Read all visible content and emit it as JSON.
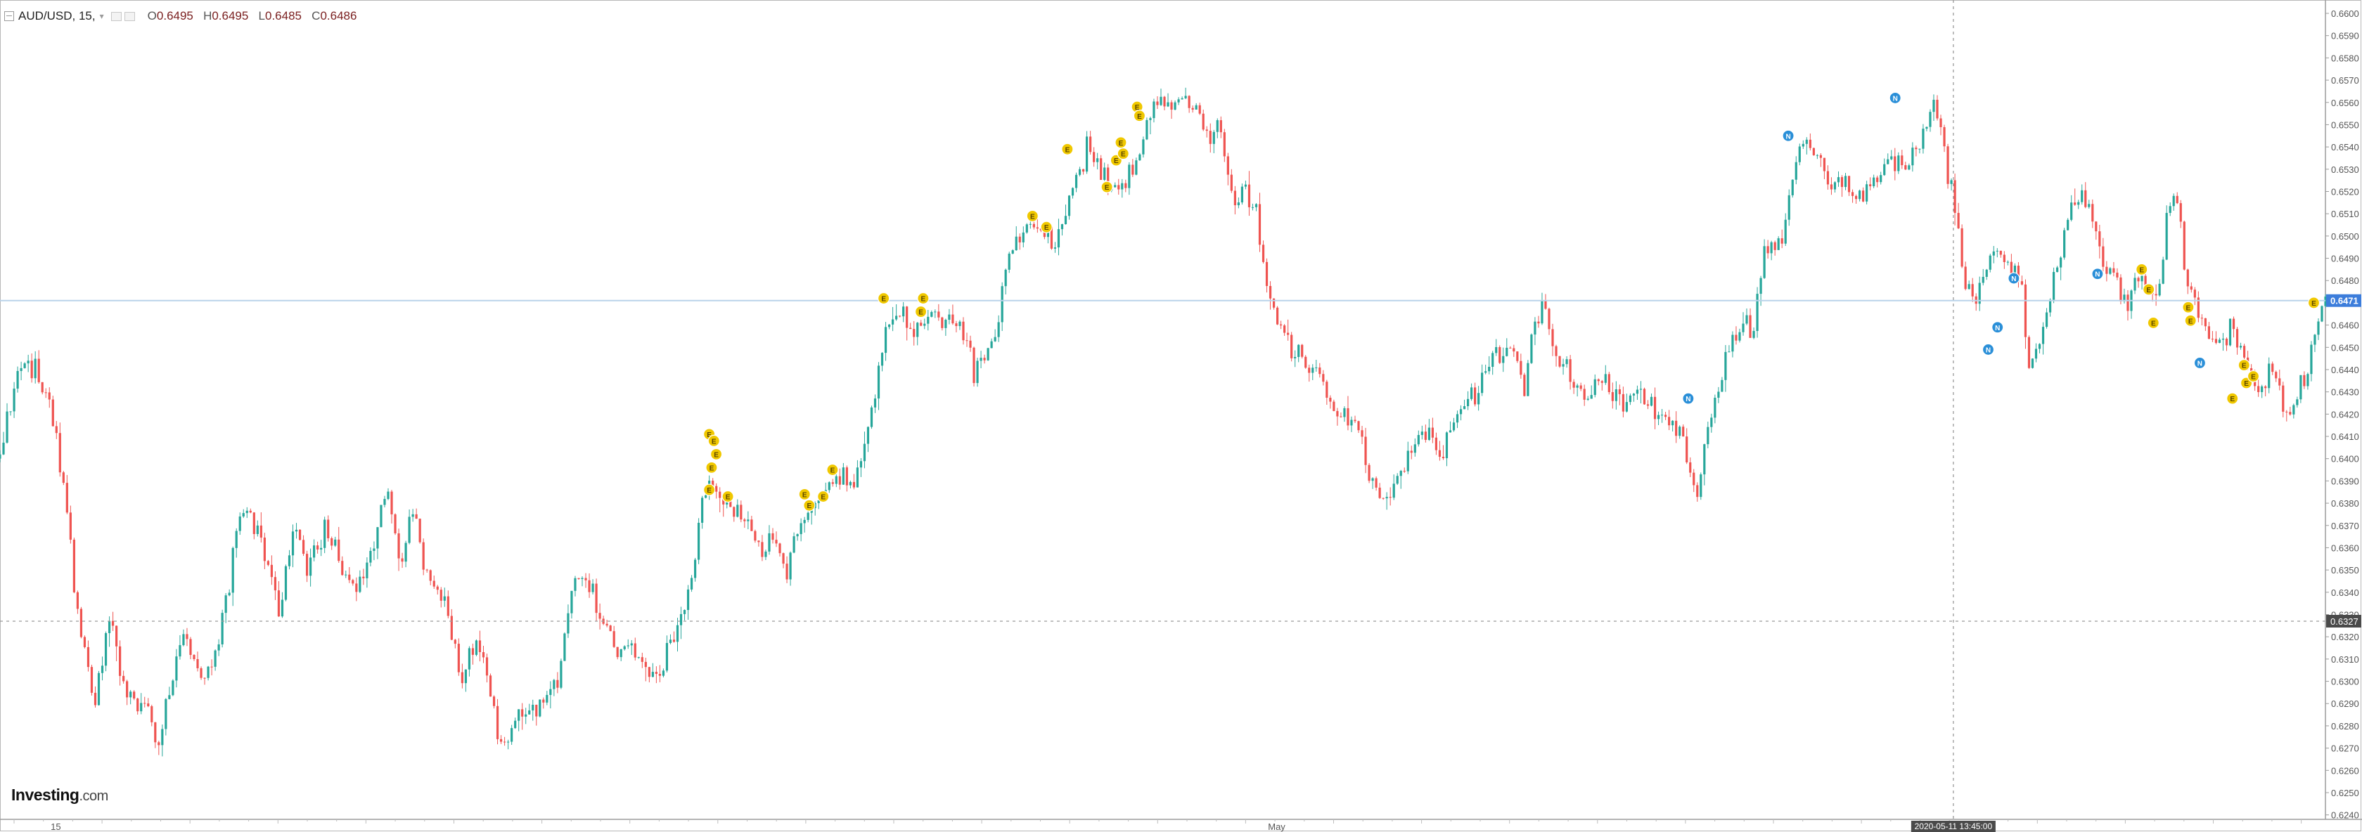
{
  "header": {
    "symbol": "AUD/USD",
    "interval": "15",
    "open_label": "O",
    "open": "0.6495",
    "high_label": "H",
    "high": "0.6495",
    "low_label": "L",
    "low": "0.6485",
    "close_label": "C",
    "close": "0.6486"
  },
  "brand": {
    "name": "Investing",
    "domain": ".com"
  },
  "colors": {
    "up": "#26a69a",
    "down": "#ef5350",
    "last_price_badge": "#3c7ddb",
    "crosshair_badge": "#4a4a4a",
    "event_marker_e": "#f0c800",
    "event_marker_n": "#2a8fd8",
    "price_line": "#b9d3ea"
  },
  "chart_data": {
    "type": "candlestick",
    "title": "AUD/USD, 15",
    "ylim": [
      0.6238,
      0.6606
    ],
    "yticks": [
      "0.6600",
      "0.6590",
      "0.6580",
      "0.6570",
      "0.6560",
      "0.6550",
      "0.6540",
      "0.6530",
      "0.6520",
      "0.6510",
      "0.6500",
      "0.6490",
      "0.6480",
      "0.6470",
      "0.6460",
      "0.6450",
      "0.6440",
      "0.6430",
      "0.6420",
      "0.6410",
      "0.6400",
      "0.6390",
      "0.6380",
      "0.6370",
      "0.6360",
      "0.6350",
      "0.6340",
      "0.6330",
      "0.6320",
      "0.6310",
      "0.6300",
      "0.6290",
      "0.6280",
      "0.6270",
      "0.6260",
      "0.6250",
      "0.6240"
    ],
    "x_labels": [
      {
        "label": "15",
        "pos": 0.024
      },
      {
        "label": "May",
        "pos": 0.549
      },
      {
        "label": "2020-05-11 13:45:00",
        "pos": 0.84,
        "highlight": true
      }
    ],
    "close_path": [
      [
        0.0,
        0.64
      ],
      [
        0.008,
        0.644
      ],
      [
        0.015,
        0.644
      ],
      [
        0.022,
        0.642
      ],
      [
        0.028,
        0.639
      ],
      [
        0.032,
        0.634
      ],
      [
        0.036,
        0.632
      ],
      [
        0.041,
        0.629
      ],
      [
        0.047,
        0.633
      ],
      [
        0.053,
        0.63
      ],
      [
        0.058,
        0.629
      ],
      [
        0.063,
        0.629
      ],
      [
        0.068,
        0.627
      ],
      [
        0.074,
        0.63
      ],
      [
        0.08,
        0.632
      ],
      [
        0.086,
        0.63
      ],
      [
        0.092,
        0.631
      ],
      [
        0.098,
        0.634
      ],
      [
        0.104,
        0.638
      ],
      [
        0.11,
        0.637
      ],
      [
        0.116,
        0.635
      ],
      [
        0.12,
        0.633
      ],
      [
        0.126,
        0.637
      ],
      [
        0.132,
        0.635
      ],
      [
        0.14,
        0.637
      ],
      [
        0.146,
        0.635
      ],
      [
        0.153,
        0.634
      ],
      [
        0.16,
        0.636
      ],
      [
        0.166,
        0.639
      ],
      [
        0.172,
        0.635
      ],
      [
        0.178,
        0.638
      ],
      [
        0.183,
        0.635
      ],
      [
        0.188,
        0.634
      ],
      [
        0.193,
        0.633
      ],
      [
        0.198,
        0.63
      ],
      [
        0.203,
        0.632
      ],
      [
        0.208,
        0.631
      ],
      [
        0.213,
        0.628
      ],
      [
        0.218,
        0.627
      ],
      [
        0.222,
        0.628
      ],
      [
        0.228,
        0.629
      ],
      [
        0.234,
        0.629
      ],
      [
        0.24,
        0.63
      ],
      [
        0.244,
        0.633
      ],
      [
        0.248,
        0.635
      ],
      [
        0.254,
        0.634
      ],
      [
        0.258,
        0.633
      ],
      [
        0.262,
        0.632
      ],
      [
        0.266,
        0.631
      ],
      [
        0.271,
        0.632
      ],
      [
        0.276,
        0.631
      ],
      [
        0.281,
        0.63
      ],
      [
        0.286,
        0.631
      ],
      [
        0.29,
        0.632
      ],
      [
        0.294,
        0.633
      ],
      [
        0.298,
        0.635
      ],
      [
        0.303,
        0.639
      ],
      [
        0.308,
        0.6385
      ],
      [
        0.313,
        0.638
      ],
      [
        0.318,
        0.6375
      ],
      [
        0.323,
        0.637
      ],
      [
        0.328,
        0.636
      ],
      [
        0.333,
        0.636
      ],
      [
        0.338,
        0.635
      ],
      [
        0.344,
        0.637
      ],
      [
        0.349,
        0.638
      ],
      [
        0.354,
        0.6385
      ],
      [
        0.36,
        0.639
      ],
      [
        0.366,
        0.639
      ],
      [
        0.371,
        0.64
      ],
      [
        0.376,
        0.643
      ],
      [
        0.381,
        0.646
      ],
      [
        0.386,
        0.647
      ],
      [
        0.392,
        0.646
      ],
      [
        0.398,
        0.6465
      ],
      [
        0.404,
        0.646
      ],
      [
        0.409,
        0.6465
      ],
      [
        0.414,
        0.646
      ],
      [
        0.419,
        0.644
      ],
      [
        0.424,
        0.645
      ],
      [
        0.429,
        0.646
      ],
      [
        0.433,
        0.649
      ],
      [
        0.438,
        0.65
      ],
      [
        0.443,
        0.6505
      ],
      [
        0.448,
        0.65
      ],
      [
        0.453,
        0.6495
      ],
      [
        0.458,
        0.651
      ],
      [
        0.463,
        0.653
      ],
      [
        0.468,
        0.654
      ],
      [
        0.473,
        0.653
      ],
      [
        0.478,
        0.652
      ],
      [
        0.483,
        0.6525
      ],
      [
        0.488,
        0.653
      ],
      [
        0.493,
        0.655
      ],
      [
        0.498,
        0.656
      ],
      [
        0.503,
        0.6555
      ],
      [
        0.508,
        0.6565
      ],
      [
        0.512,
        0.656
      ],
      [
        0.516,
        0.655
      ],
      [
        0.52,
        0.6545
      ],
      [
        0.525,
        0.655
      ],
      [
        0.528,
        0.653
      ],
      [
        0.531,
        0.651
      ],
      [
        0.535,
        0.652
      ],
      [
        0.54,
        0.651
      ],
      [
        0.545,
        0.648
      ],
      [
        0.55,
        0.646
      ],
      [
        0.555,
        0.645
      ],
      [
        0.56,
        0.645
      ],
      [
        0.565,
        0.644
      ],
      [
        0.57,
        0.643
      ],
      [
        0.575,
        0.642
      ],
      [
        0.58,
        0.642
      ],
      [
        0.585,
        0.641
      ],
      [
        0.59,
        0.639
      ],
      [
        0.595,
        0.638
      ],
      [
        0.6,
        0.639
      ],
      [
        0.605,
        0.64
      ],
      [
        0.61,
        0.641
      ],
      [
        0.615,
        0.641
      ],
      [
        0.62,
        0.64
      ],
      [
        0.625,
        0.642
      ],
      [
        0.63,
        0.6425
      ],
      [
        0.635,
        0.643
      ],
      [
        0.64,
        0.644
      ],
      [
        0.645,
        0.6445
      ],
      [
        0.65,
        0.645
      ],
      [
        0.655,
        0.643
      ],
      [
        0.66,
        0.646
      ],
      [
        0.664,
        0.647
      ],
      [
        0.668,
        0.645
      ],
      [
        0.673,
        0.644
      ],
      [
        0.678,
        0.6435
      ],
      [
        0.683,
        0.6425
      ],
      [
        0.688,
        0.644
      ],
      [
        0.693,
        0.643
      ],
      [
        0.698,
        0.6425
      ],
      [
        0.703,
        0.643
      ],
      [
        0.708,
        0.6425
      ],
      [
        0.713,
        0.642
      ],
      [
        0.718,
        0.642
      ],
      [
        0.723,
        0.641
      ],
      [
        0.727,
        0.639
      ],
      [
        0.73,
        0.638
      ],
      [
        0.733,
        0.641
      ],
      [
        0.737,
        0.642
      ],
      [
        0.741,
        0.644
      ],
      [
        0.745,
        0.6455
      ],
      [
        0.75,
        0.646
      ],
      [
        0.754,
        0.646
      ],
      [
        0.758,
        0.649
      ],
      [
        0.762,
        0.6495
      ],
      [
        0.766,
        0.65
      ],
      [
        0.77,
        0.652
      ],
      [
        0.774,
        0.654
      ],
      [
        0.778,
        0.654
      ],
      [
        0.783,
        0.6535
      ],
      [
        0.788,
        0.652
      ],
      [
        0.793,
        0.6525
      ],
      [
        0.798,
        0.6515
      ],
      [
        0.803,
        0.652
      ],
      [
        0.808,
        0.653
      ],
      [
        0.813,
        0.6535
      ],
      [
        0.818,
        0.653
      ],
      [
        0.823,
        0.654
      ],
      [
        0.828,
        0.655
      ],
      [
        0.832,
        0.656
      ],
      [
        0.836,
        0.654
      ],
      [
        0.84,
        0.6515
      ],
      [
        0.844,
        0.649
      ],
      [
        0.848,
        0.647
      ],
      [
        0.852,
        0.648
      ],
      [
        0.857,
        0.649
      ],
      [
        0.862,
        0.649
      ],
      [
        0.866,
        0.648
      ],
      [
        0.87,
        0.647
      ],
      [
        0.873,
        0.644
      ],
      [
        0.876,
        0.645
      ],
      [
        0.88,
        0.6465
      ],
      [
        0.884,
        0.648
      ],
      [
        0.888,
        0.65
      ],
      [
        0.892,
        0.6515
      ],
      [
        0.896,
        0.652
      ],
      [
        0.9,
        0.651
      ],
      [
        0.904,
        0.649
      ],
      [
        0.908,
        0.648
      ],
      [
        0.912,
        0.6475
      ],
      [
        0.916,
        0.647
      ],
      [
        0.92,
        0.648
      ],
      [
        0.924,
        0.6475
      ],
      [
        0.928,
        0.647
      ],
      [
        0.932,
        0.651
      ],
      [
        0.936,
        0.652
      ],
      [
        0.94,
        0.648
      ],
      [
        0.944,
        0.647
      ],
      [
        0.948,
        0.646
      ],
      [
        0.952,
        0.645
      ],
      [
        0.956,
        0.6455
      ],
      [
        0.96,
        0.646
      ],
      [
        0.964,
        0.645
      ],
      [
        0.968,
        0.644
      ],
      [
        0.972,
        0.643
      ],
      [
        0.976,
        0.644
      ],
      [
        0.98,
        0.643
      ],
      [
        0.984,
        0.642
      ],
      [
        0.988,
        0.643
      ],
      [
        0.992,
        0.644
      ],
      [
        0.996,
        0.646
      ],
      [
        1.0,
        0.6471
      ]
    ],
    "volatility": 0.0009,
    "last_price": "0.6471",
    "crosshair_price": "0.6327",
    "crosshair_x_pos": 0.84,
    "event_markers": [
      {
        "label": "E",
        "x": 0.305,
        "y": 0.6411
      },
      {
        "label": "E",
        "x": 0.307,
        "y": 0.6408
      },
      {
        "label": "E",
        "x": 0.308,
        "y": 0.6402
      },
      {
        "label": "E",
        "x": 0.306,
        "y": 0.6396
      },
      {
        "label": "E",
        "x": 0.305,
        "y": 0.6386
      },
      {
        "label": "E",
        "x": 0.313,
        "y": 0.6383
      },
      {
        "label": "E",
        "x": 0.346,
        "y": 0.6384
      },
      {
        "label": "E",
        "x": 0.348,
        "y": 0.6379
      },
      {
        "label": "E",
        "x": 0.354,
        "y": 0.6383
      },
      {
        "label": "E",
        "x": 0.358,
        "y": 0.6395
      },
      {
        "label": "E",
        "x": 0.38,
        "y": 0.6472
      },
      {
        "label": "E",
        "x": 0.397,
        "y": 0.6472
      },
      {
        "label": "E",
        "x": 0.396,
        "y": 0.6466
      },
      {
        "label": "E",
        "x": 0.444,
        "y": 0.6509
      },
      {
        "label": "E",
        "x": 0.45,
        "y": 0.6504
      },
      {
        "label": "E",
        "x": 0.459,
        "y": 0.6539
      },
      {
        "label": "E",
        "x": 0.476,
        "y": 0.6522
      },
      {
        "label": "E",
        "x": 0.48,
        "y": 0.6534
      },
      {
        "label": "E",
        "x": 0.483,
        "y": 0.6537
      },
      {
        "label": "E",
        "x": 0.482,
        "y": 0.6542
      },
      {
        "label": "E",
        "x": 0.489,
        "y": 0.6558
      },
      {
        "label": "E",
        "x": 0.49,
        "y": 0.6554
      },
      {
        "label": "N",
        "x": 0.726,
        "y": 0.6427
      },
      {
        "label": "N",
        "x": 0.769,
        "y": 0.6545
      },
      {
        "label": "N",
        "x": 0.815,
        "y": 0.6562
      },
      {
        "label": "N",
        "x": 0.855,
        "y": 0.6449
      },
      {
        "label": "N",
        "x": 0.859,
        "y": 0.6459
      },
      {
        "label": "N",
        "x": 0.866,
        "y": 0.6481
      },
      {
        "label": "N",
        "x": 0.902,
        "y": 0.6483
      },
      {
        "label": "N",
        "x": 0.946,
        "y": 0.6443
      },
      {
        "label": "E",
        "x": 0.921,
        "y": 0.6485
      },
      {
        "label": "E",
        "x": 0.924,
        "y": 0.6476
      },
      {
        "label": "E",
        "x": 0.926,
        "y": 0.6461
      },
      {
        "label": "E",
        "x": 0.941,
        "y": 0.6468
      },
      {
        "label": "E",
        "x": 0.942,
        "y": 0.6462
      },
      {
        "label": "E",
        "x": 0.96,
        "y": 0.6427
      },
      {
        "label": "E",
        "x": 0.965,
        "y": 0.6442
      },
      {
        "label": "E",
        "x": 0.966,
        "y": 0.6434
      },
      {
        "label": "E",
        "x": 0.969,
        "y": 0.6437
      },
      {
        "label": "E",
        "x": 0.995,
        "y": 0.647
      }
    ],
    "grid": false,
    "legend": "none"
  }
}
